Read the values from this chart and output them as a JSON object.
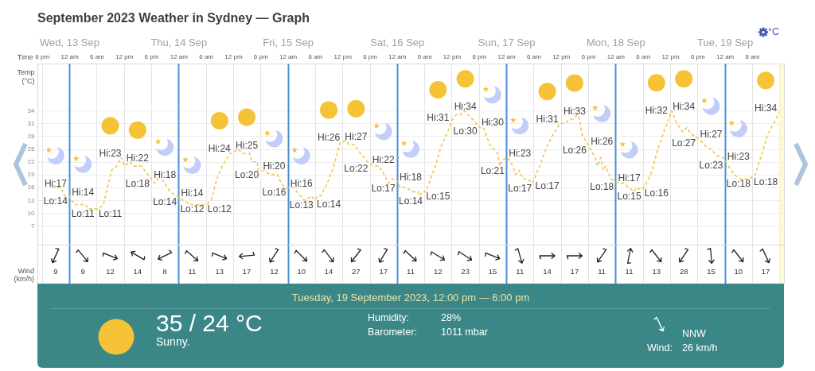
{
  "chart_data": [
    {
      "type": "line",
      "title": "September 2023 Weather in Sydney — Graph",
      "xlabel": "Time",
      "ylabel": "Temp (°C)",
      "x": [
        "2023-09-12T20:06",
        "2023-09-12T22:06",
        "2023-09-12T23:00",
        "2023-09-13T00:00",
        "2023-09-13T01:12",
        "2023-09-13T03:36",
        "2023-09-13T04:06",
        "2023-09-13T06:24",
        "2023-09-13T07:30",
        "2023-09-13T09:18",
        "2023-09-13T10:24",
        "2023-09-13T11:24",
        "2023-09-13T12:12",
        "2023-09-13T13:18",
        "2023-09-13T14:06",
        "2023-09-13T15:48",
        "2023-09-13T17:18",
        "2023-09-13T18:42",
        "2023-09-13T19:12",
        "2023-09-13T20:42",
        "2023-09-13T22:06",
        "2023-09-13T23:42",
        "2023-09-14T01:00",
        "2023-09-14T02:42",
        "2023-09-14T06:12",
        "2023-09-14T07:12",
        "2023-09-14T08:24",
        "2023-09-14T09:36",
        "2023-09-14T11:18",
        "2023-09-14T11:48",
        "2023-09-14T13:00",
        "2023-09-14T14:06",
        "2023-09-14T15:36",
        "2023-09-14T16:06",
        "2023-09-14T17:18",
        "2023-09-14T17:30",
        "2023-09-14T18:42",
        "2023-09-14T20:06",
        "2023-09-14T21:48",
        "2023-09-14T22:30",
        "2023-09-14T23:30",
        "2023-09-15T01:12",
        "2023-09-15T02:00",
        "2023-09-15T03:36",
        "2023-09-15T04:30",
        "2023-09-15T05:18",
        "2023-09-15T05:48",
        "2023-09-15T06:42",
        "2023-09-15T07:12",
        "2023-09-15T08:42",
        "2023-09-15T10:06",
        "2023-09-15T11:30",
        "2023-09-15T12:42",
        "2023-09-15T13:30",
        "2023-09-15T14:42",
        "2023-09-15T15:36",
        "2023-09-15T17:30",
        "2023-09-15T19:00",
        "2023-09-15T20:06",
        "2023-09-15T20:54",
        "2023-09-15T22:06",
        "2023-09-15T23:00",
        "2023-09-15T23:48",
        "2023-09-16T00:42",
        "2023-09-16T02:06",
        "2023-09-16T03:18",
        "2023-09-16T04:36",
        "2023-09-16T05:00",
        "2023-09-16T05:30",
        "2023-09-16T06:18",
        "2023-09-16T07:12",
        "2023-09-16T08:24",
        "2023-09-16T09:48",
        "2023-09-16T11:18",
        "2023-09-16T12:12",
        "2023-09-16T13:00",
        "2023-09-16T13:54",
        "2023-09-16T14:42",
        "2023-09-16T15:36",
        "2023-09-16T17:00",
        "2023-09-16T18:12",
        "2023-09-16T19:00",
        "2023-09-16T20:24",
        "2023-09-16T22:06",
        "2023-09-16T22:36",
        "2023-09-16T23:18",
        "2023-09-17T00:18",
        "2023-09-17T01:12",
        "2023-09-17T02:06",
        "2023-09-17T02:54",
        "2023-09-17T03:36",
        "2023-09-17T04:36",
        "2023-09-17T05:48",
        "2023-09-17T07:18",
        "2023-09-17T08:42",
        "2023-09-17T10:06",
        "2023-09-17T11:48",
        "2023-09-17T13:00",
        "2023-09-17T13:54",
        "2023-09-17T14:42",
        "2023-09-17T15:36",
        "2023-09-17T16:06",
        "2023-09-17T16:36",
        "2023-09-17T18:12",
        "2023-09-17T19:30",
        "2023-09-17T20:06",
        "2023-09-17T20:42",
        "2023-09-17T21:18",
        "2023-09-17T21:48",
        "2023-09-17T23:00",
        "2023-09-17T23:48",
        "2023-09-18T00:42",
        "2023-09-18T02:00",
        "2023-09-18T02:54",
        "2023-09-18T04:06",
        "2023-09-18T04:36",
        "2023-09-18T05:30",
        "2023-09-18T06:18",
        "2023-09-18T07:54",
        "2023-09-18T09:18",
        "2023-09-18T10:36",
        "2023-09-18T11:30",
        "2023-09-18T12:18",
        "2023-09-18T13:12",
        "2023-09-18T14:06",
        "2023-09-18T14:42",
        "2023-09-18T15:36",
        "2023-09-18T16:36",
        "2023-09-18T17:30",
        "2023-09-18T18:42",
        "2023-09-18T19:54",
        "2023-09-18T21:00",
        "2023-09-18T22:12",
        "2023-09-18T23:36",
        "2023-09-19T01:06",
        "2023-09-19T02:06",
        "2023-09-19T03:18",
        "2023-09-19T05:30",
        "2023-09-19T06:42",
        "2023-09-19T07:54",
        "2023-09-19T09:18",
        "2023-09-19T10:42",
        "2023-09-19T12:12"
      ],
      "values": [
        16,
        16,
        14,
        14,
        12,
        12,
        11,
        11,
        12,
        20,
        21,
        23,
        21,
        22,
        21,
        21,
        19,
        17,
        18,
        17.5,
        15,
        14,
        13,
        12,
        12,
        13,
        18,
        21,
        24,
        24,
        25,
        24,
        24,
        22,
        22,
        20,
        20,
        19,
        19,
        17,
        16,
        16,
        15,
        13,
        13.5,
        14,
        13,
        14,
        14,
        17,
        21,
        26.5,
        27,
        26,
        26,
        24.5,
        22,
        21,
        21,
        19.5,
        17,
        18,
        18,
        16,
        16,
        15,
        15,
        14,
        15,
        15,
        17.5,
        21,
        26,
        29.5,
        32,
        33,
        33,
        34,
        33,
        31.5,
        30,
        30,
        26,
        24,
        21,
        22.5,
        23,
        21.5,
        19,
        20,
        18,
        18,
        17,
        21,
        25,
        28,
        31,
        31,
        32,
        32,
        33,
        32,
        28.5,
        25.5,
        23,
        21,
        23,
        20,
        21,
        18,
        17.5,
        17,
        17,
        16,
        15,
        16,
        15.5,
        16,
        19.5,
        25,
        29,
        31.5,
        34,
        31.5,
        30,
        29,
        30,
        28.5,
        28,
        27,
        25.5,
        25,
        23.5,
        23,
        20.5,
        19,
        18,
        18,
        19,
        23,
        28,
        31,
        34
      ],
      "color": "#f5c54a",
      "line_style": "dashed",
      "xlim": [
        "2023-09-12T17:00",
        "2023-09-19T13:00"
      ],
      "xticks": [
        {
          "value": "2023-09-12T18:00",
          "label": "6 pm"
        },
        {
          "value": "2023-09-13T00:00",
          "label": "12 am"
        },
        {
          "value": "2023-09-13T06:00",
          "label": "6 am"
        },
        {
          "value": "2023-09-13T12:00",
          "label": "12 pm"
        },
        {
          "value": "2023-09-13T18:00",
          "label": "6 pm"
        },
        {
          "value": "2023-09-14T00:00",
          "label": "12 am"
        },
        {
          "value": "2023-09-14T06:00",
          "label": "6 am"
        },
        {
          "value": "2023-09-14T12:00",
          "label": "12 pm"
        },
        {
          "value": "2023-09-14T18:00",
          "label": "6 pm"
        },
        {
          "value": "2023-09-15T00:00",
          "label": "12 am"
        },
        {
          "value": "2023-09-15T06:00",
          "label": "6 am"
        },
        {
          "value": "2023-09-15T12:00",
          "label": "12 pm"
        },
        {
          "value": "2023-09-15T18:00",
          "label": "6 pm"
        },
        {
          "value": "2023-09-16T00:00",
          "label": "12 am"
        },
        {
          "value": "2023-09-16T06:00",
          "label": "6 am"
        },
        {
          "value": "2023-09-16T12:00",
          "label": "12 pm"
        },
        {
          "value": "2023-09-16T18:00",
          "label": "6 pm"
        },
        {
          "value": "2023-09-17T00:00",
          "label": "12 am"
        },
        {
          "value": "2023-09-17T06:00",
          "label": "6 am"
        },
        {
          "value": "2023-09-17T12:00",
          "label": "12 pm"
        },
        {
          "value": "2023-09-17T18:00",
          "label": "6 pm"
        },
        {
          "value": "2023-09-18T00:00",
          "label": "12 am"
        },
        {
          "value": "2023-09-18T06:00",
          "label": "6 am"
        },
        {
          "value": "2023-09-18T12:00",
          "label": "12 pm"
        },
        {
          "value": "2023-09-18T18:00",
          "label": "6 pm"
        },
        {
          "value": "2023-09-19T00:00",
          "label": "12 am"
        },
        {
          "value": "2023-09-19T06:00",
          "label": "6 am"
        },
        {
          "value": "2023-09-19T12:00",
          "label": null
        }
      ],
      "x2lim": [
        "2023-09-12T17:00",
        "2023-09-19T13:00"
      ],
      "x2ticks": [
        {
          "value": "2023-09-13",
          "label": "Wed, 13 Sep"
        },
        {
          "value": "2023-09-14",
          "label": "Thu, 14 Sep"
        },
        {
          "value": "2023-09-15",
          "label": "Fri, 15 Sep"
        },
        {
          "value": "2023-09-16",
          "label": "Sat, 16 Sep"
        },
        {
          "value": "2023-09-17",
          "label": "Sun, 17 Sep"
        },
        {
          "value": "2023-09-18",
          "label": "Mon, 18 Sep"
        },
        {
          "value": "2023-09-19",
          "label": "Tue, 19 Sep"
        }
      ],
      "ylim": [
        -6.5,
        45
      ],
      "yticks": [
        7,
        10,
        13,
        16,
        19,
        22,
        25,
        28,
        31,
        34
      ],
      "grid": true,
      "bands": [
        {
          "axis": "x",
          "from": "2023-09-19T12:00",
          "to": "2023-09-19T13:00",
          "color": "#fdf8c8"
        }
      ],
      "annotations": [
        "Hi:17",
        "Lo:14",
        "Hi:14",
        "Lo:11",
        "Hi:23",
        "Lo:11",
        "Hi:22",
        "Lo:18",
        "Hi:18",
        "Lo:14",
        "Hi:14",
        "Lo:12",
        "Hi:24",
        "Lo:12",
        "Hi:25",
        "Lo:20",
        "Hi:20",
        "Lo:16",
        "Hi:16",
        "Lo:13",
        "Hi:26",
        "Lo:14",
        "Hi:27",
        "Lo:22",
        "Hi:22",
        "Lo:17",
        "Hi:18",
        "Lo:14",
        "Hi:31",
        "Lo:15",
        "Hi:34",
        "Lo:30",
        "Hi:30",
        "Lo:21",
        "Hi:23",
        "Lo:17",
        "Hi:31",
        "Lo:17",
        "Hi:33",
        "Lo:26",
        "Hi:26",
        "Lo:18",
        "Hi:17",
        "Lo:15",
        "Hi:32",
        "Lo:16",
        "Hi:34",
        "Lo:27",
        "Hi:27",
        "Lo:23",
        "Hi:23",
        "Lo:18",
        "Hi:34",
        "Lo:18",
        "°C"
      ]
    },
    {
      "type": "other",
      "ylabel": "Wind (km/h)",
      "values": [
        9,
        9,
        12,
        14,
        8,
        11,
        13,
        17,
        12,
        10,
        14,
        27,
        17,
        11,
        12,
        23,
        15,
        11,
        14,
        17,
        11,
        11,
        13,
        28,
        15,
        10,
        17
      ],
      "data_labels": true
    },
    {
      "type": "other",
      "title": "Tuesday, 19 September 2023, 12:00 pm — 6:00 pm",
      "annotations": [
        "35 / 24 °C",
        "Sunny.",
        "Humidity:",
        "28%",
        "Barometer:",
        "1011 mbar",
        "NNW",
        "Wind:",
        "26 km/h"
      ]
    }
  ]
}
